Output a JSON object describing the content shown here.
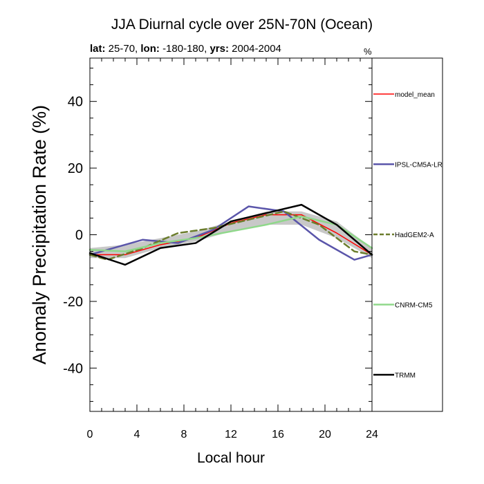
{
  "chart_data": {
    "type": "line",
    "title": "JJA Diurnal cycle over 25N-70N (Ocean)",
    "subtitle": {
      "lat_label": "lat:",
      "lat_value": "25-70,",
      "lon_label": "lon:",
      "lon_value": "-180-180,",
      "yrs_label": "yrs:",
      "yrs_value": "2004-2004"
    },
    "legend_unit": "%",
    "xlabel": "Local hour",
    "ylabel": "Anomaly Precipitation Rate (%)",
    "xlim": [
      0,
      24
    ],
    "ylim": [
      -53,
      53
    ],
    "xticks": [
      0,
      4,
      8,
      12,
      16,
      20,
      24
    ],
    "yticks": [
      -40,
      -20,
      0,
      20,
      40
    ],
    "legend_position": "right",
    "spread_band": {
      "color": "#c8c8c8",
      "x": [
        0,
        3,
        6,
        9,
        12,
        15,
        18,
        21,
        24
      ],
      "upper": [
        -4,
        -3,
        -1,
        1,
        4,
        7,
        7,
        4,
        -4
      ],
      "lower": [
        -7,
        -7,
        -4,
        -2,
        1,
        3,
        3,
        -1,
        -7
      ]
    },
    "series": [
      {
        "name": "model_mean",
        "color": "#ff0000",
        "dash": false,
        "width": 1.5,
        "x": [
          0,
          3,
          6,
          9,
          12,
          15,
          18,
          21,
          24
        ],
        "values": [
          -6,
          -6,
          -3,
          -1,
          3.5,
          6,
          6,
          0.5,
          -6
        ]
      },
      {
        "name": "IPSL-CM5A-LR",
        "color": "#5a55aa",
        "dash": false,
        "width": 2.5,
        "x": [
          0,
          4.5,
          7.5,
          10.5,
          13.5,
          16.5,
          19.5,
          22.5,
          24
        ],
        "values": [
          -6,
          -1.5,
          -2.5,
          1.5,
          8.5,
          7,
          -1.5,
          -7.5,
          -6
        ]
      },
      {
        "name": "HadGEM2-A",
        "color": "#6b7d2c",
        "dash": true,
        "width": 2.5,
        "x": [
          0,
          1.5,
          4.5,
          7.5,
          10.5,
          13.5,
          16.5,
          19.5,
          22.5,
          24
        ],
        "values": [
          -6,
          -7.5,
          -4,
          0.5,
          2,
          4.5,
          7,
          3,
          -5,
          -6
        ]
      },
      {
        "name": "CNRM-CM5",
        "color": "#8fd88a",
        "dash": false,
        "width": 2.5,
        "x": [
          0,
          3,
          6,
          9,
          12,
          15,
          18,
          21,
          24
        ],
        "values": [
          -4.5,
          -5,
          -2.5,
          -1,
          1,
          3,
          5.5,
          3,
          -4
        ]
      },
      {
        "name": "TRMM",
        "color": "#000000",
        "dash": false,
        "width": 2.5,
        "x": [
          0,
          3,
          6,
          9,
          12,
          15,
          18,
          21,
          24
        ],
        "values": [
          -5.5,
          -9,
          -4,
          -2.5,
          4,
          6.5,
          9,
          3,
          -6
        ]
      }
    ]
  }
}
